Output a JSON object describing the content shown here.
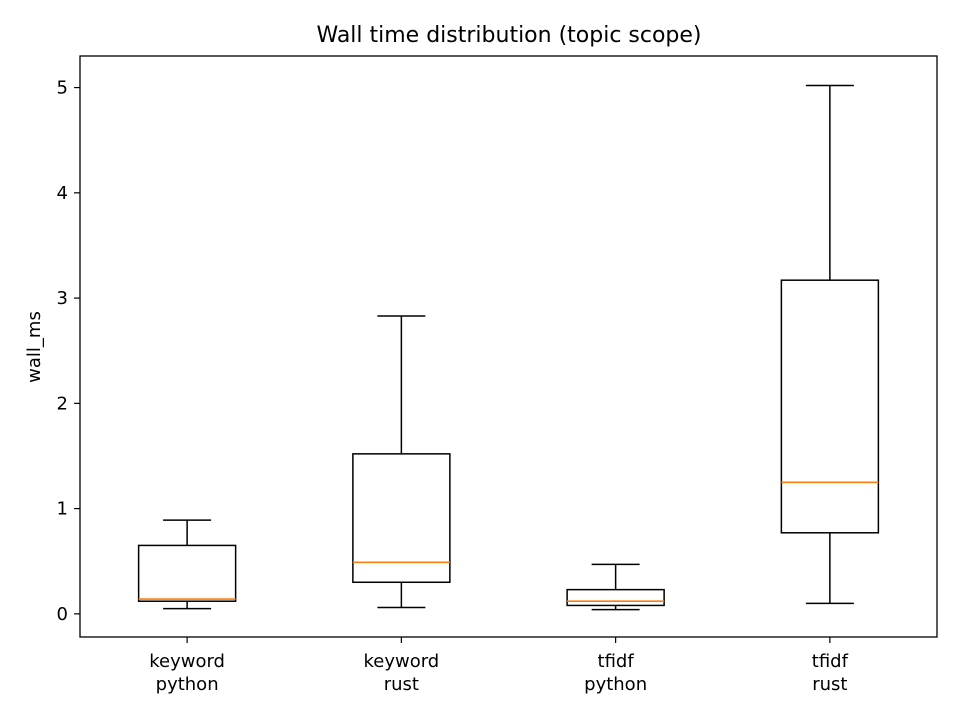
{
  "chart_data": {
    "type": "box",
    "title": "Wall time distribution (topic scope)",
    "xlabel": "",
    "ylabel": "wall_ms",
    "ylim": [
      -0.22,
      5.3
    ],
    "yticks": [
      0,
      1,
      2,
      3,
      4,
      5
    ],
    "grid": false,
    "categories": [
      [
        "keyword",
        "python"
      ],
      [
        "keyword",
        "rust"
      ],
      [
        "tfidf",
        "python"
      ],
      [
        "tfidf",
        "rust"
      ]
    ],
    "boxes": [
      {
        "whisker_low": 0.05,
        "q1": 0.12,
        "median": 0.14,
        "q3": 0.65,
        "whisker_high": 0.89
      },
      {
        "whisker_low": 0.06,
        "q1": 0.3,
        "median": 0.49,
        "q3": 1.52,
        "whisker_high": 2.83
      },
      {
        "whisker_low": 0.04,
        "q1": 0.08,
        "median": 0.12,
        "q3": 0.23,
        "whisker_high": 0.47
      },
      {
        "whisker_low": 0.1,
        "q1": 0.77,
        "median": 1.25,
        "q3": 3.17,
        "whisker_high": 5.02
      }
    ],
    "colors": {
      "box": "#000000",
      "median": "#ff7f0e",
      "axes": "#000000"
    }
  }
}
